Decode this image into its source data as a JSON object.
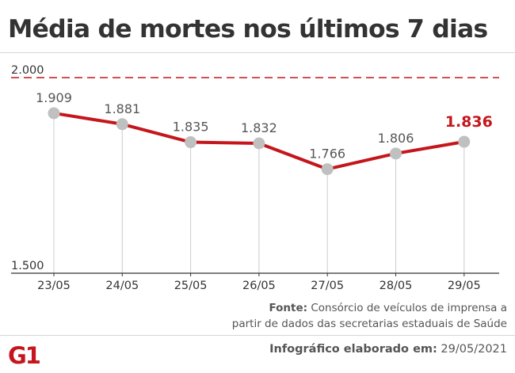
{
  "title": "Média de mortes nos últimos 7 dias",
  "source": {
    "label": "Fonte:",
    "line1": " Consórcio de veículos de imprensa a",
    "line2": "partir de dados das secretarias estaduais de Saúde"
  },
  "logo_text": "G1",
  "credit": {
    "label": "Infográfico elaborado em:",
    "date": " 29/05/2021"
  },
  "colors": {
    "line": "#c4161c",
    "point": "#c0c0c0",
    "highlight": "#c4161c",
    "reference": "#c4161c",
    "text": "#555555"
  },
  "chart_data": {
    "type": "line",
    "categories": [
      "23/05",
      "24/05",
      "25/05",
      "26/05",
      "27/05",
      "28/05",
      "29/05"
    ],
    "values": [
      1909,
      1881,
      1835,
      1832,
      1766,
      1806,
      1836
    ],
    "data_labels": [
      "1.909",
      "1.881",
      "1.835",
      "1.832",
      "1.766",
      "1.806",
      "1.836"
    ],
    "highlight_last": true,
    "ylim": [
      1500,
      2000
    ],
    "yticks": [
      {
        "value": 2000,
        "label": "2.000"
      },
      {
        "value": 1500,
        "label": "1.500"
      }
    ],
    "reference_line": {
      "value": 2000,
      "style": "dashed"
    },
    "title": "Média de mortes nos últimos 7 dias",
    "xlabel": "",
    "ylabel": "",
    "grid": false
  }
}
